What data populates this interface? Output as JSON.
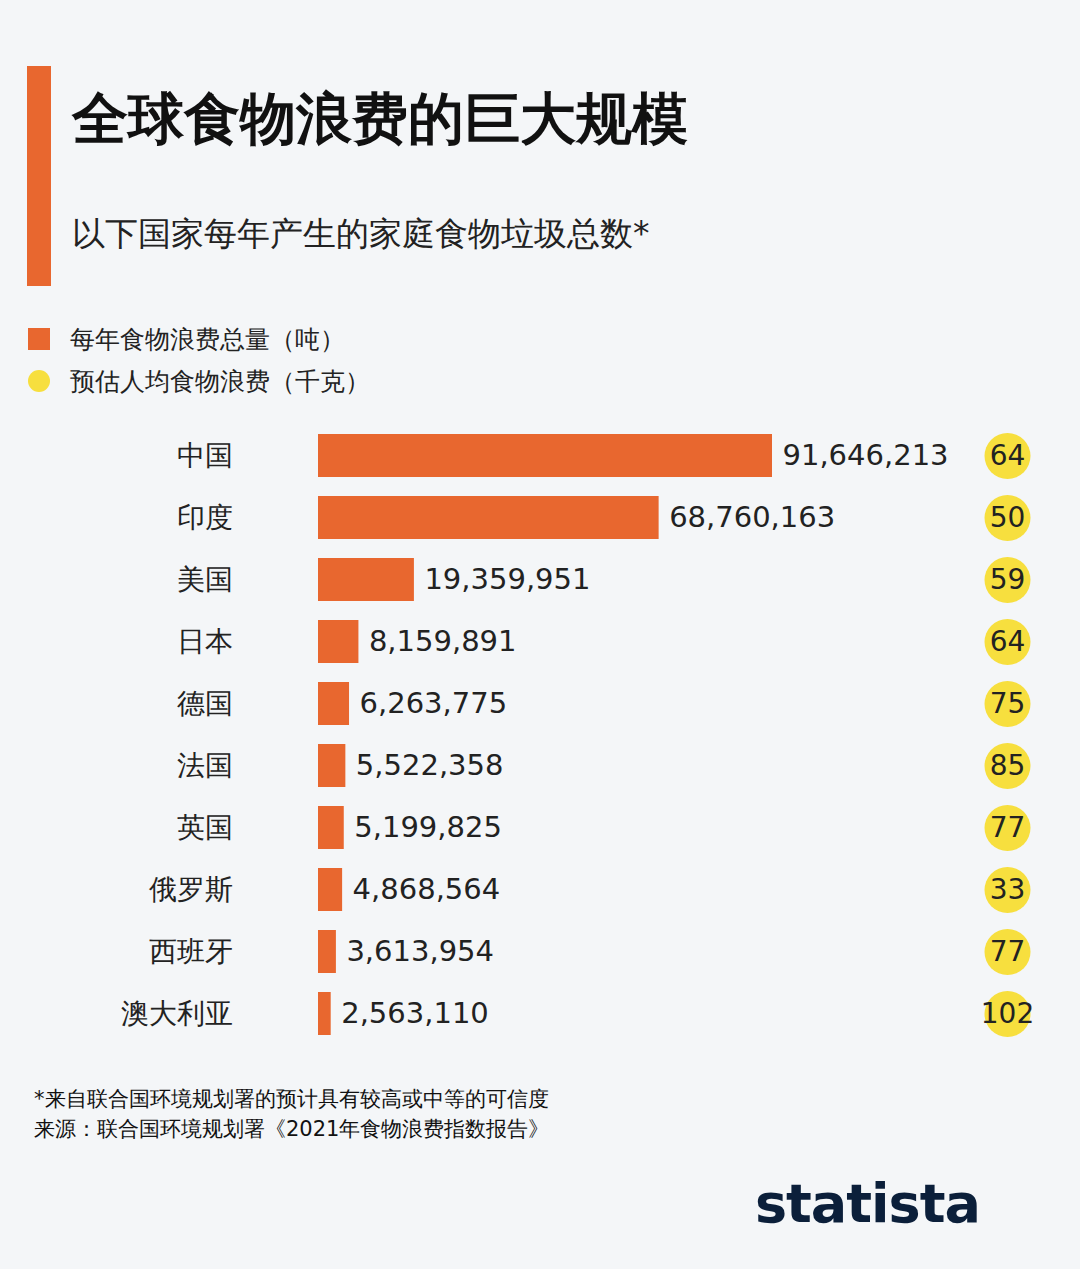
{
  "chart_data": {
    "type": "bar",
    "orientation": "horizontal",
    "title": "全球食物浪费的巨大规模",
    "subtitle": "以下国家每年产生的家庭食物垃圾总数*",
    "categories": [
      "中国",
      "印度",
      "美国",
      "日本",
      "德国",
      "法国",
      "英国",
      "俄罗斯",
      "西班牙",
      "澳大利亚"
    ],
    "series": [
      {
        "name": "每年食物浪费总量（吨）",
        "type": "bar",
        "color": "#e8672f",
        "values": [
          91646213,
          68760163,
          19359951,
          8159891,
          6263775,
          5522358,
          5199825,
          4868564,
          3613954,
          2563110
        ],
        "value_labels": [
          "91,646,213",
          "68,760,163",
          "19,359,951",
          "8,159,891",
          "6,263,775",
          "5,522,358",
          "5,199,825",
          "4,868,564",
          "3,613,954",
          "2,563,110"
        ]
      },
      {
        "name": "预估人均食物浪费（千克）",
        "type": "dot",
        "color": "#f7df3e",
        "values": [
          64,
          50,
          59,
          64,
          75,
          85,
          77,
          33,
          77,
          102
        ]
      }
    ],
    "xlim": [
      0,
      91646213
    ],
    "data_labels": true,
    "tick_labels": "y",
    "legend": "top-left",
    "footnote": "*来自联合国环境规划署的预计具有较高或中等的可信度",
    "source": "来源：联合国环境规划署《2021年食物浪费指数报告》",
    "brand": "statista"
  }
}
